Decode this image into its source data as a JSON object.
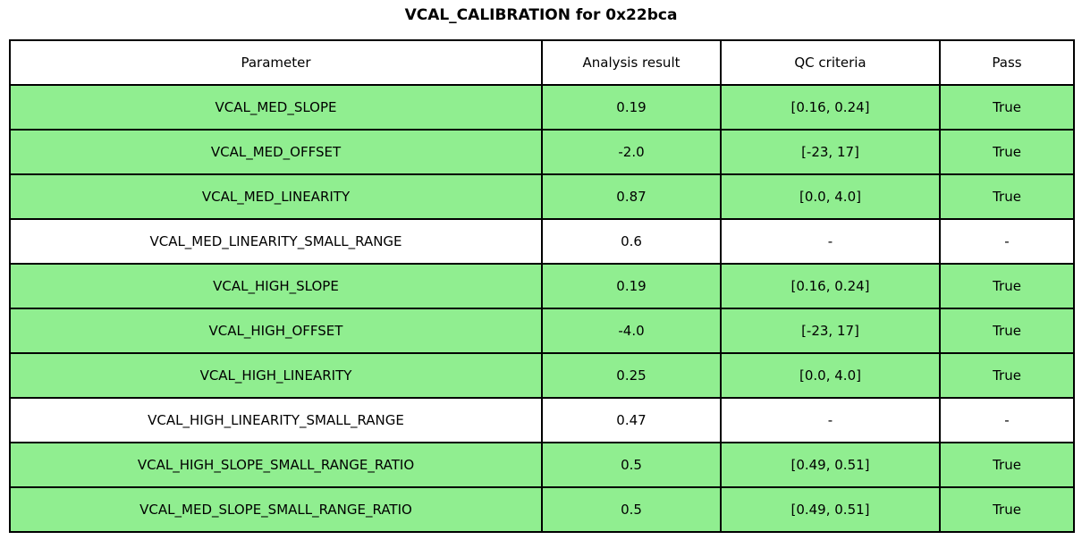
{
  "title": "VCAL_CALIBRATION for 0x22bca",
  "colors": {
    "pass_row": "#90ee90",
    "neutral_row": "#ffffff",
    "border": "#000000",
    "text": "#000000"
  },
  "table": {
    "headers": {
      "parameter": "Parameter",
      "result": "Analysis result",
      "criteria": "QC criteria",
      "pass": "Pass"
    },
    "rows": [
      {
        "parameter": "VCAL_MED_SLOPE",
        "result": "0.19",
        "criteria": "[0.16, 0.24]",
        "pass": "True",
        "highlight": "pass"
      },
      {
        "parameter": "VCAL_MED_OFFSET",
        "result": "-2.0",
        "criteria": "[-23, 17]",
        "pass": "True",
        "highlight": "pass"
      },
      {
        "parameter": "VCAL_MED_LINEARITY",
        "result": "0.87",
        "criteria": "[0.0, 4.0]",
        "pass": "True",
        "highlight": "pass"
      },
      {
        "parameter": "VCAL_MED_LINEARITY_SMALL_RANGE",
        "result": "0.6",
        "criteria": "-",
        "pass": "-",
        "highlight": "neutral"
      },
      {
        "parameter": "VCAL_HIGH_SLOPE",
        "result": "0.19",
        "criteria": "[0.16, 0.24]",
        "pass": "True",
        "highlight": "pass"
      },
      {
        "parameter": "VCAL_HIGH_OFFSET",
        "result": "-4.0",
        "criteria": "[-23, 17]",
        "pass": "True",
        "highlight": "pass"
      },
      {
        "parameter": "VCAL_HIGH_LINEARITY",
        "result": "0.25",
        "criteria": "[0.0, 4.0]",
        "pass": "True",
        "highlight": "pass"
      },
      {
        "parameter": "VCAL_HIGH_LINEARITY_SMALL_RANGE",
        "result": "0.47",
        "criteria": "-",
        "pass": "-",
        "highlight": "neutral"
      },
      {
        "parameter": "VCAL_HIGH_SLOPE_SMALL_RANGE_RATIO",
        "result": "0.5",
        "criteria": "[0.49, 0.51]",
        "pass": "True",
        "highlight": "pass"
      },
      {
        "parameter": "VCAL_MED_SLOPE_SMALL_RANGE_RATIO",
        "result": "0.5",
        "criteria": "[0.49, 0.51]",
        "pass": "True",
        "highlight": "pass"
      }
    ]
  },
  "chart_data": {
    "type": "table",
    "title": "VCAL_CALIBRATION for 0x22bca",
    "columns": [
      "Parameter",
      "Analysis result",
      "QC criteria",
      "Pass"
    ],
    "rows": [
      [
        "VCAL_MED_SLOPE",
        "0.19",
        "[0.16, 0.24]",
        "True"
      ],
      [
        "VCAL_MED_OFFSET",
        "-2.0",
        "[-23, 17]",
        "True"
      ],
      [
        "VCAL_MED_LINEARITY",
        "0.87",
        "[0.0, 4.0]",
        "True"
      ],
      [
        "VCAL_MED_LINEARITY_SMALL_RANGE",
        "0.6",
        "-",
        "-"
      ],
      [
        "VCAL_HIGH_SLOPE",
        "0.19",
        "[0.16, 0.24]",
        "True"
      ],
      [
        "VCAL_HIGH_OFFSET",
        "-4.0",
        "[-23, 17]",
        "True"
      ],
      [
        "VCAL_HIGH_LINEARITY",
        "0.25",
        "[0.0, 4.0]",
        "True"
      ],
      [
        "VCAL_HIGH_LINEARITY_SMALL_RANGE",
        "0.47",
        "-",
        "-"
      ],
      [
        "VCAL_HIGH_SLOPE_SMALL_RANGE_RATIO",
        "0.5",
        "[0.49, 0.51]",
        "True"
      ],
      [
        "VCAL_MED_SLOPE_SMALL_RANGE_RATIO",
        "0.5",
        "[0.49, 0.51]",
        "True"
      ]
    ],
    "row_highlight": [
      "pass",
      "pass",
      "pass",
      "neutral",
      "pass",
      "pass",
      "pass",
      "neutral",
      "pass",
      "pass"
    ],
    "highlight_colors": {
      "pass": "#90ee90",
      "neutral": "#ffffff"
    }
  }
}
